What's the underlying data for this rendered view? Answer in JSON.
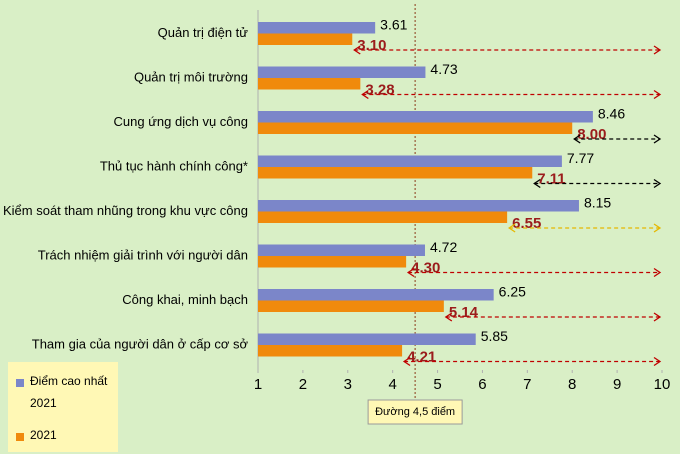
{
  "chart_data": {
    "type": "hbar",
    "categories": [
      "Quản trị điện tử",
      "Quản trị môi trường",
      "Cung ứng dịch vụ công",
      "Thủ tục hành chính công*",
      "Kiểm soát tham nhũng trong khu vực công",
      "Trách nhiệm giải trình với người dân",
      "Công khai, minh bạch",
      "Tham gia của người dân ở cấp cơ sở"
    ],
    "series": [
      {
        "name": "Điểm cao nhất 2021",
        "color": "#7b86c9",
        "values": [
          3.61,
          4.73,
          8.46,
          7.77,
          8.15,
          4.72,
          6.25,
          5.85
        ]
      },
      {
        "name": "2021",
        "color": "#f08a0c",
        "values": [
          3.1,
          3.28,
          8,
          7.11,
          6.55,
          4.3,
          5.14,
          4.21
        ],
        "value_labels": [
          "3.10",
          "3.28",
          "8.00",
          "7.11",
          "6.55",
          "4.30",
          "5.14",
          "4.21"
        ]
      }
    ],
    "arrow_colors": [
      "#c00000",
      "#c00000",
      "#000000",
      "#000000",
      "#e6b800",
      "#c00000",
      "#c00000",
      "#c00000"
    ],
    "xlim": [
      1,
      10
    ],
    "xticks": [
      1,
      2,
      3,
      4,
      5,
      6,
      7,
      8,
      9,
      10
    ],
    "reference_line": {
      "value": 4.5,
      "label": "Đường 4,5 điểm"
    },
    "legend": "bottom-left"
  }
}
